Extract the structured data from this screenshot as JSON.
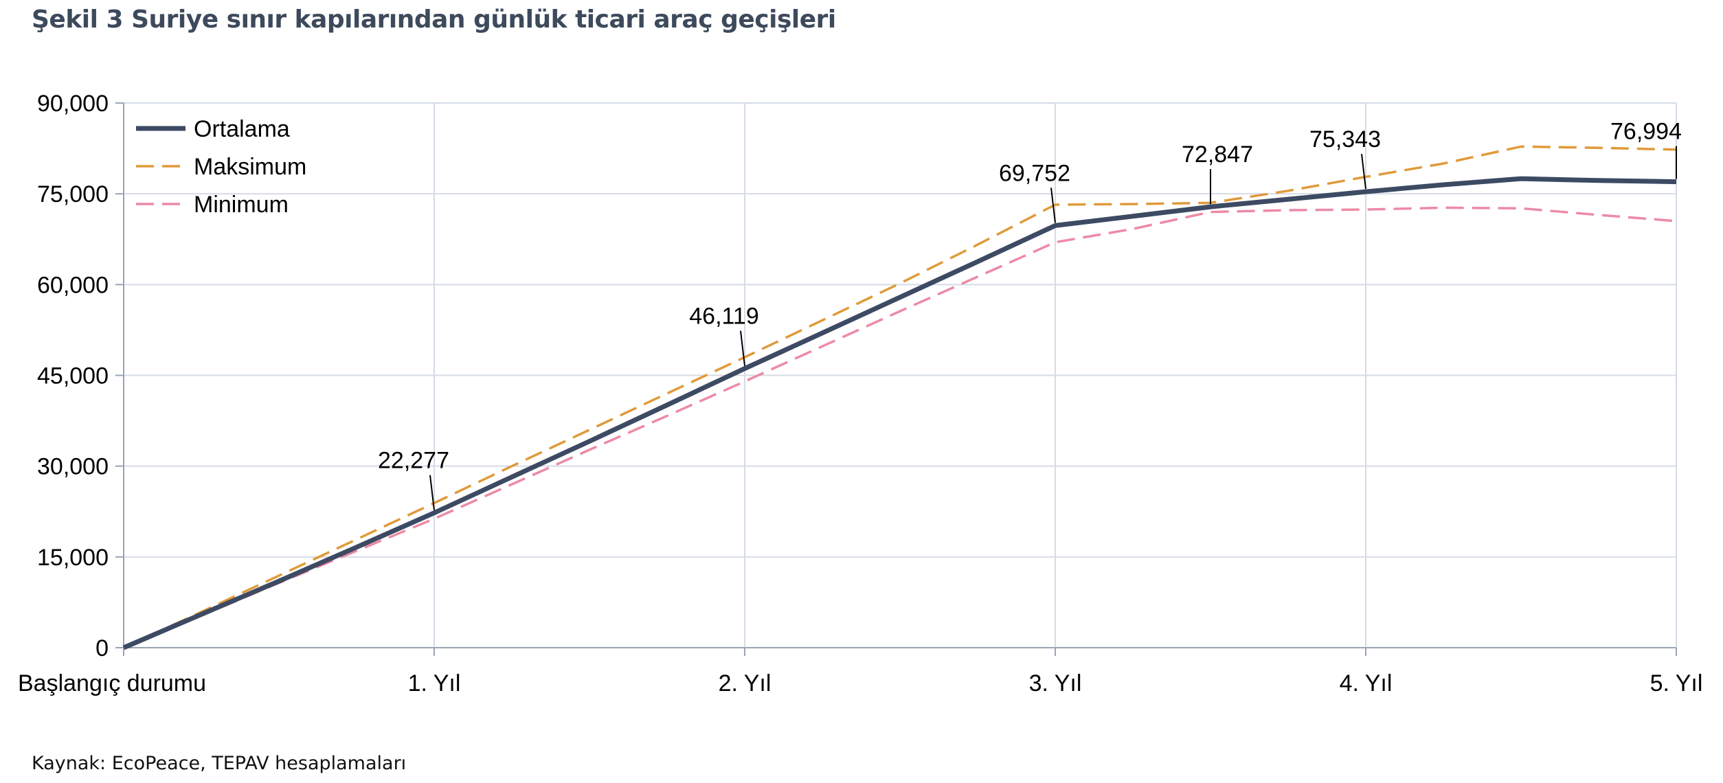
{
  "figure": {
    "title": "Şekil 3 Suriye sınır kapılarından günlük ticari araç geçişleri",
    "source": "Kaynak: EcoPeace, TEPAV hesaplamaları"
  },
  "colors": {
    "ortalama": "#3d4a63",
    "maksimum": "#e09a3a",
    "minimum": "#ec8aa6",
    "grid": "#d6dbe6",
    "axis": "#d6dbe6"
  },
  "chart_data": {
    "type": "line",
    "title": "",
    "xlabel": "",
    "ylabel": "",
    "categories": [
      "Başlangıç durumu",
      "1. Yıl",
      "2. Yıl",
      "3. Yıl",
      "4. Yıl",
      "5. Yıl"
    ],
    "x_range": [
      0,
      5
    ],
    "ylim": [
      0,
      90000
    ],
    "y_ticks": [
      0,
      15000,
      30000,
      45000,
      60000,
      75000,
      90000
    ],
    "y_tick_labels": [
      "0",
      "15,000",
      "30,000",
      "45,000",
      "60,000",
      "75,000",
      "90,000"
    ],
    "grid": true,
    "legend_position": "top-left",
    "series": [
      {
        "name": "Ortalama",
        "color_key": "ortalama",
        "style": "solid",
        "points": [
          [
            0,
            0
          ],
          [
            0.25,
            5500
          ],
          [
            0.5,
            11000
          ],
          [
            0.75,
            16600
          ],
          [
            1,
            22277
          ],
          [
            1.25,
            28200
          ],
          [
            1.5,
            34100
          ],
          [
            1.75,
            40100
          ],
          [
            2,
            46119
          ],
          [
            2.25,
            52000
          ],
          [
            2.5,
            57900
          ],
          [
            2.75,
            63800
          ],
          [
            3,
            69752
          ],
          [
            3.25,
            71300
          ],
          [
            3.5,
            72847
          ],
          [
            3.75,
            74100
          ],
          [
            4,
            75343
          ],
          [
            4.25,
            76500
          ],
          [
            4.5,
            77500
          ],
          [
            4.75,
            77200
          ],
          [
            5,
            76994
          ]
        ]
      },
      {
        "name": "Maksimum",
        "color_key": "maksimum",
        "style": "dashed",
        "points": [
          [
            0,
            0
          ],
          [
            0.25,
            5900
          ],
          [
            0.5,
            11900
          ],
          [
            0.75,
            17900
          ],
          [
            1,
            23900
          ],
          [
            1.25,
            30000
          ],
          [
            1.5,
            36000
          ],
          [
            1.75,
            42000
          ],
          [
            2,
            48000
          ],
          [
            2.25,
            54100
          ],
          [
            2.5,
            60200
          ],
          [
            2.75,
            66600
          ],
          [
            3,
            73200
          ],
          [
            3.25,
            73300
          ],
          [
            3.5,
            73500
          ],
          [
            3.75,
            75500
          ],
          [
            4,
            77800
          ],
          [
            4.25,
            80000
          ],
          [
            4.5,
            82800
          ],
          [
            4.75,
            82600
          ],
          [
            5,
            82300
          ]
        ]
      },
      {
        "name": "Minimum",
        "color_key": "minimum",
        "style": "dashed",
        "points": [
          [
            0,
            0
          ],
          [
            0.25,
            5300
          ],
          [
            0.5,
            10700
          ],
          [
            0.75,
            16000
          ],
          [
            1,
            21300
          ],
          [
            1.25,
            27000
          ],
          [
            1.5,
            32700
          ],
          [
            1.75,
            38300
          ],
          [
            2,
            44000
          ],
          [
            2.25,
            49800
          ],
          [
            2.5,
            55600
          ],
          [
            2.75,
            61300
          ],
          [
            3,
            67000
          ],
          [
            3.25,
            69200
          ],
          [
            3.5,
            72000
          ],
          [
            3.75,
            72300
          ],
          [
            4,
            72400
          ],
          [
            4.25,
            72700
          ],
          [
            4.5,
            72600
          ],
          [
            4.75,
            71500
          ],
          [
            5,
            70500
          ]
        ]
      }
    ],
    "annotations": [
      {
        "label": "22,277",
        "x": 1,
        "y": 22277
      },
      {
        "label": "46,119",
        "x": 2,
        "y": 46119
      },
      {
        "label": "69,752",
        "x": 3,
        "y": 69752
      },
      {
        "label": "72,847",
        "x": 3.5,
        "y": 72847
      },
      {
        "label": "75,343",
        "x": 4,
        "y": 75343
      },
      {
        "label": "76,994",
        "x": 5,
        "y": 76994
      }
    ]
  }
}
